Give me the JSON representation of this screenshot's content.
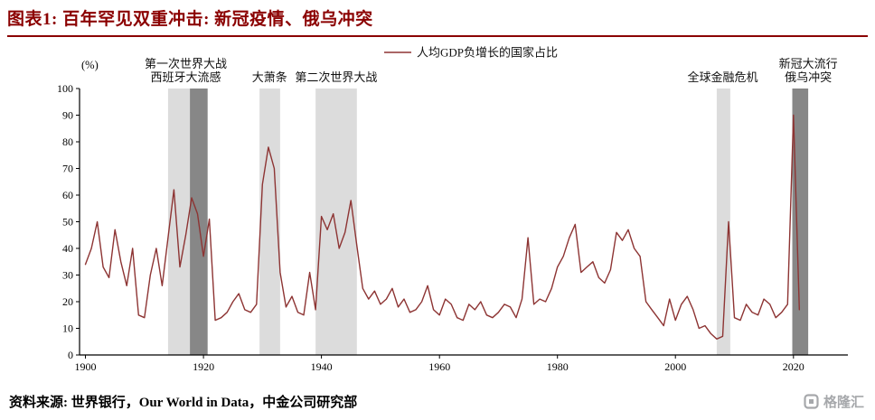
{
  "header": {
    "title": "图表1: 百年罕见双重冲击: 新冠疫情、俄乌冲突",
    "accent_color": "#8B0000"
  },
  "footer": {
    "source": "资料来源: 世界银行，Our World in Data，中金公司研究部",
    "logo_text": "格隆汇"
  },
  "chart_data": {
    "type": "line",
    "title": "",
    "legend": [
      "人均GDP负增长的国家占比"
    ],
    "legend_position": "top-center",
    "line_color": "#8D3433",
    "axis_color": "#000000",
    "ylabel": "(%)",
    "xlabel": "",
    "ylim": [
      0,
      100
    ],
    "yticks": [
      0,
      10,
      20,
      30,
      40,
      50,
      60,
      70,
      80,
      90,
      100
    ],
    "xlim": [
      1899,
      2028
    ],
    "xticks": [
      1900,
      1920,
      1940,
      1960,
      1980,
      2000,
      2020
    ],
    "grid": false,
    "x_start": 1900,
    "x_step": 1,
    "x_end": 2021,
    "values": [
      34,
      40,
      50,
      33,
      29,
      47,
      35,
      26,
      40,
      15,
      14,
      30,
      40,
      26,
      44,
      62,
      33,
      45,
      59,
      53,
      37,
      51,
      13,
      14,
      16,
      20,
      23,
      17,
      16,
      19,
      64,
      78,
      70,
      31,
      18,
      22,
      16,
      15,
      31,
      17,
      52,
      47,
      53,
      40,
      46,
      58,
      41,
      25,
      21,
      24,
      19,
      21,
      25,
      18,
      21,
      16,
      17,
      20,
      26,
      17,
      15,
      21,
      19,
      14,
      13,
      19,
      17,
      20,
      15,
      14,
      16,
      19,
      18,
      14,
      21,
      44,
      19,
      21,
      20,
      25,
      33,
      37,
      44,
      49,
      31,
      33,
      35,
      29,
      27,
      32,
      46,
      43,
      47,
      40,
      37,
      20,
      17,
      14,
      11,
      21,
      13,
      19,
      22,
      17,
      10,
      11,
      8,
      6,
      7,
      50,
      14,
      13,
      19,
      16,
      15,
      21,
      19,
      14,
      16,
      19,
      90,
      17
    ],
    "bands": [
      {
        "name": "wwi",
        "from": 1914,
        "to": 1917.7,
        "color": "#DCDCDC"
      },
      {
        "name": "spanish-flu",
        "from": 1917.7,
        "to": 1920.7,
        "color": "#878787"
      },
      {
        "name": "great-depression",
        "from": 1929.5,
        "to": 1933,
        "color": "#DCDCDC"
      },
      {
        "name": "wwii",
        "from": 1939,
        "to": 1946,
        "color": "#DCDCDC"
      },
      {
        "name": "gfc",
        "from": 2007,
        "to": 2009.3,
        "color": "#DCDCDC"
      },
      {
        "name": "covid-ukraine",
        "from": 2019.8,
        "to": 2022.5,
        "color": "#878787"
      }
    ],
    "annotations": [
      {
        "x": 1917,
        "lines": [
          "第一次世界大战",
          "西班牙大流感"
        ]
      },
      {
        "x": 1931.2,
        "lines": [
          "大萧条"
        ]
      },
      {
        "x": 1942.5,
        "lines": [
          "第二次世界大战"
        ]
      },
      {
        "x": 2008,
        "lines": [
          "全球金融危机"
        ]
      },
      {
        "x": 2022.5,
        "lines": [
          "新冠大流行",
          "俄乌冲突"
        ]
      }
    ]
  }
}
